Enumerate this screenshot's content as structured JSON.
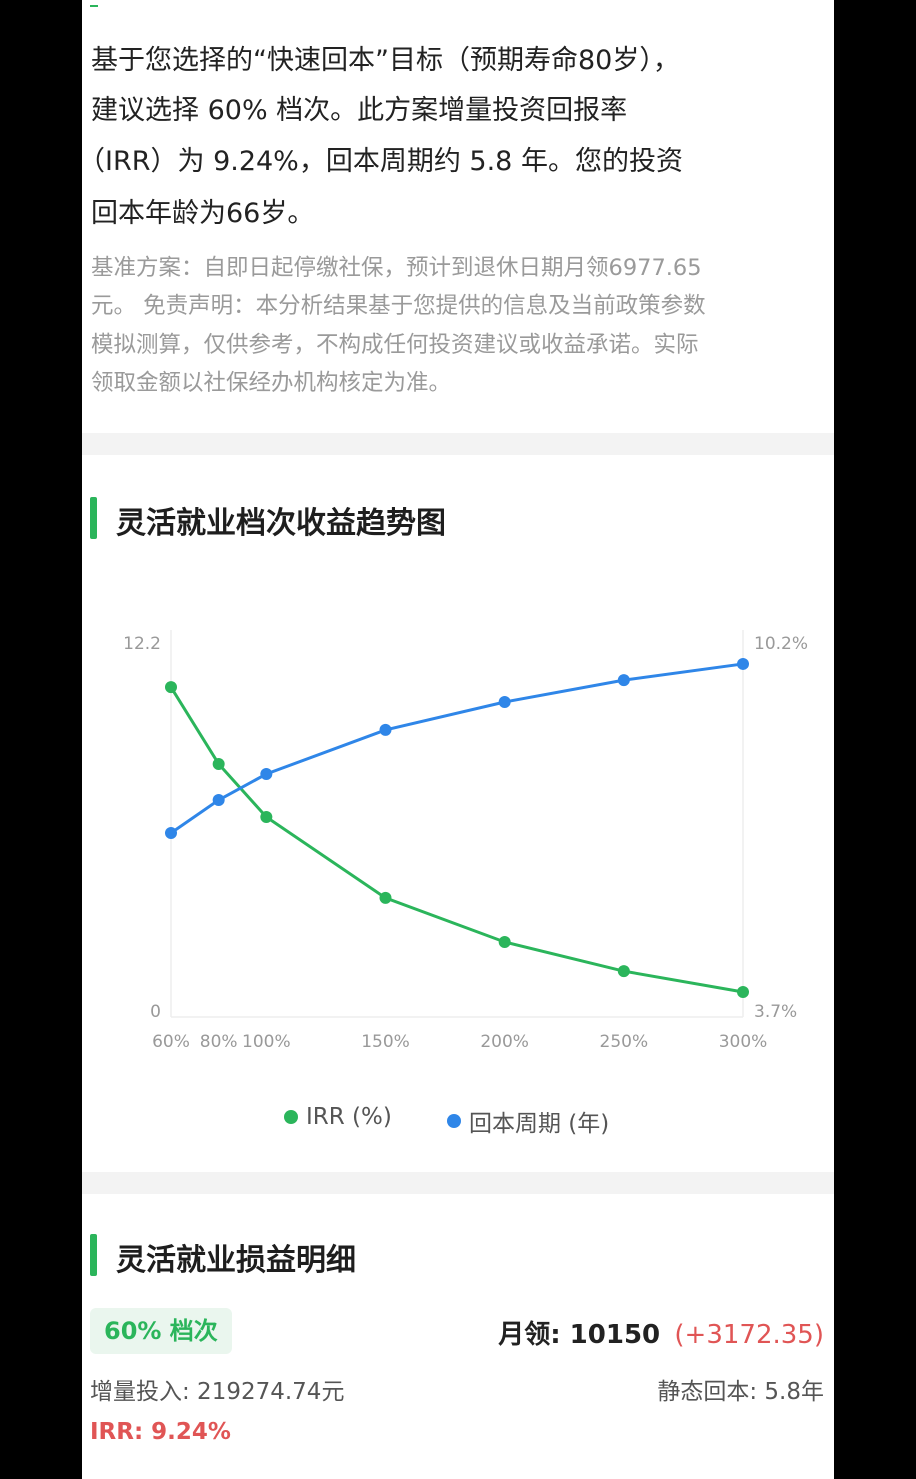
{
  "summary": {
    "lines": [
      "基于您选择的“快速回本”目标（预期寿命80岁），",
      "建议选择 60% 档次。此方案增量投资回报率",
      "（IRR）为 9.24%，回本周期约 5.8 年。您的投资",
      "回本年龄为66岁。"
    ],
    "note_lines": [
      "基准方案：自即日起停缴社保，预计到退休日期月领6977.65",
      "元。 免责声明：本分析结果基于您提供的信息及当前政策参数",
      "模拟测算，仅供参考，不构成任何投资建议或收益承诺。实际",
      "领取金额以社保经办机构核定为准。"
    ]
  },
  "trend_section": {
    "title": "灵活就业档次收益趋势图"
  },
  "chart_data": {
    "type": "line",
    "x": [
      60,
      80,
      100,
      150,
      200,
      250,
      300
    ],
    "x_tick_labels": [
      "60%",
      "80%",
      "100%",
      "150%",
      "200%",
      "250%",
      "300%"
    ],
    "y_left": {
      "range": [
        0,
        12.2
      ],
      "tick_labels": [
        "12.2",
        "0"
      ]
    },
    "y_right": {
      "range": [
        3.7,
        10.2
      ],
      "tick_labels": [
        "10.2%",
        "3.7%"
      ]
    },
    "series": [
      {
        "name": "IRR (%)",
        "axis": "right",
        "color": "#2bb55b",
        "values": [
          9.24,
          7.95,
          7.06,
          5.7,
          4.96,
          4.47,
          4.12
        ]
      },
      {
        "name": "回本周期 (年)",
        "axis": "left",
        "color": "#2f86e8",
        "values": [
          5.8,
          6.84,
          7.66,
          9.05,
          9.93,
          10.62,
          11.13
        ]
      }
    ],
    "legend": "bottom",
    "grid": false
  },
  "detail_section": {
    "title": "灵活就业损益明细",
    "tier_badge": "60% 档次",
    "monthly_label": "月领: 10150",
    "monthly_delta": "(+3172.35)",
    "investment": "增量投入: 219274.74元",
    "payback": "静态回本: 5.8年",
    "irr": "IRR: 9.24%"
  },
  "colors": {
    "accent": "#2bb55b",
    "blue": "#2f86e8",
    "red": "#e05555"
  }
}
